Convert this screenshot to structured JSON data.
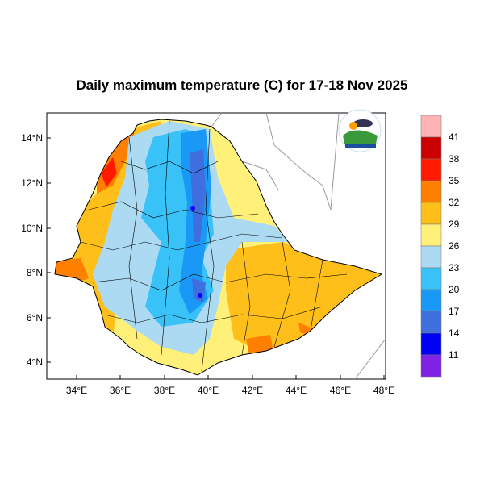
{
  "title": "Daily maximum temperature (C) for 17-18 Nov 2025",
  "map": {
    "lat_labels": [
      "14°N",
      "12°N",
      "10°N",
      "8°N",
      "6°N",
      "4°N"
    ],
    "lon_labels": [
      "34°E",
      "36°E",
      "38°E",
      "40°E",
      "42°E",
      "44°E",
      "46°E",
      "48°E"
    ]
  },
  "colorbar": {
    "labels": [
      "41",
      "38",
      "35",
      "32",
      "29",
      "26",
      "23",
      "20",
      "17",
      "14",
      "11"
    ],
    "colors": [
      "#ffb3b3",
      "#cc0000",
      "#ff1a00",
      "#ff8000",
      "#ffbf1a",
      "#fff07a",
      "#acdaf2",
      "#38c2f8",
      "#1999f5",
      "#3f6fdf",
      "#0000f5",
      "#7f22e6"
    ]
  }
}
